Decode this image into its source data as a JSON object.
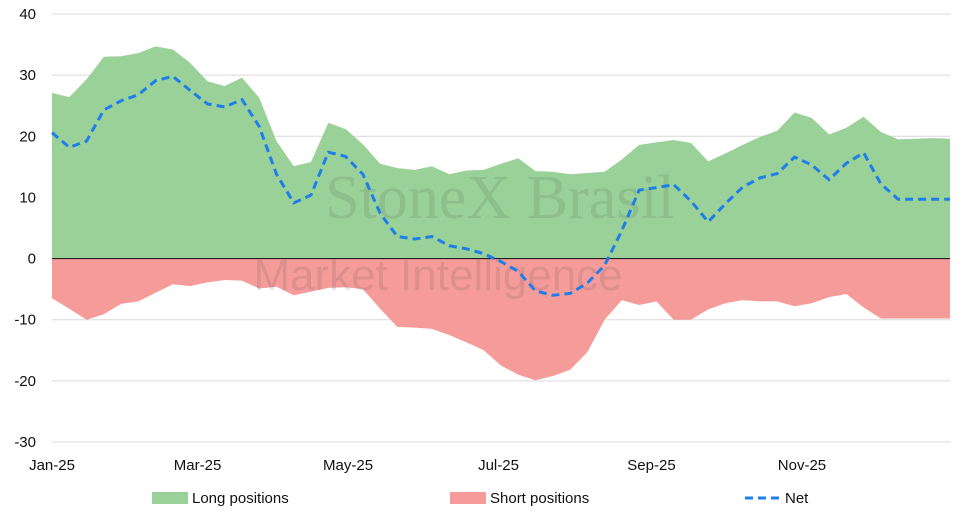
{
  "chart_data": {
    "type": "area",
    "x_start": "2025-01-01",
    "x_end": "2025-12-31",
    "xticks": [
      "Jan-25",
      "Mar-25",
      "May-25",
      "Jul-25",
      "Sep-25",
      "Nov-25"
    ],
    "ylim": [
      -30,
      40
    ],
    "yticks": [
      40,
      30,
      20,
      10,
      0,
      -10,
      -20,
      -30
    ],
    "grid": true,
    "legend_position": "bottom",
    "watermark": [
      "StoneX Brasil",
      "Market Intelligence"
    ],
    "dates": [
      "2025-01-01",
      "2025-01-08",
      "2025-01-15",
      "2025-01-22",
      "2025-01-29",
      "2025-02-05",
      "2025-02-12",
      "2025-02-19",
      "2025-02-26",
      "2025-03-05",
      "2025-03-12",
      "2025-03-19",
      "2025-03-26",
      "2025-04-02",
      "2025-04-09",
      "2025-04-16",
      "2025-04-23",
      "2025-04-30",
      "2025-05-07",
      "2025-05-14",
      "2025-05-21",
      "2025-05-28",
      "2025-06-04",
      "2025-06-11",
      "2025-06-18",
      "2025-06-25",
      "2025-07-02",
      "2025-07-09",
      "2025-07-16",
      "2025-07-23",
      "2025-07-30",
      "2025-08-06",
      "2025-08-13",
      "2025-08-20",
      "2025-08-27",
      "2025-09-03",
      "2025-09-10",
      "2025-09-17",
      "2025-09-24",
      "2025-10-01",
      "2025-10-08",
      "2025-10-15",
      "2025-10-22",
      "2025-10-29",
      "2025-11-05",
      "2025-11-12",
      "2025-11-19",
      "2025-11-26",
      "2025-12-03",
      "2025-12-10",
      "2025-12-17",
      "2025-12-24",
      "2025-12-31"
    ],
    "series": [
      {
        "name": "Long positions",
        "kind": "area",
        "color": "#99d198",
        "values": [
          27.1,
          26.4,
          29.3,
          33.0,
          33.1,
          33.6,
          34.7,
          34.2,
          32.0,
          29.0,
          28.2,
          29.6,
          26.3,
          19.2,
          15.1,
          15.8,
          22.2,
          21.2,
          18.7,
          15.5,
          14.8,
          14.5,
          15.1,
          13.8,
          14.4,
          14.5,
          15.5,
          16.4,
          14.3,
          14.2,
          13.8,
          14.0,
          14.2,
          16.2,
          18.6,
          19.0,
          19.4,
          18.9,
          15.9,
          17.2,
          18.6,
          19.9,
          20.9,
          23.9,
          23.0,
          20.3,
          21.4,
          23.2,
          20.7,
          19.5,
          19.6,
          19.7,
          19.6
        ]
      },
      {
        "name": "Short positions",
        "kind": "area",
        "color": "#f59c9b",
        "values": [
          -6.5,
          -8.2,
          -10.0,
          -9.1,
          -7.4,
          -7.0,
          -5.6,
          -4.2,
          -4.5,
          -3.9,
          -3.5,
          -3.6,
          -4.9,
          -4.6,
          -6.0,
          -5.4,
          -4.8,
          -4.7,
          -5.0,
          -8.2,
          -11.2,
          -11.3,
          -11.5,
          -12.5,
          -13.7,
          -15.0,
          -17.5,
          -19.0,
          -19.9,
          -19.2,
          -18.2,
          -15.3,
          -10.0,
          -6.8,
          -7.6,
          -7.0,
          -10.0,
          -10.0,
          -8.3,
          -7.3,
          -6.8,
          -7.0,
          -7.0,
          -7.8,
          -7.3,
          -6.3,
          -5.8,
          -8.0,
          -9.8,
          -9.8,
          -9.8,
          -9.8,
          -9.8
        ]
      },
      {
        "name": "Net",
        "kind": "line",
        "color": "#1f7fea",
        "dash": "dashed",
        "values": [
          20.6,
          18.2,
          19.2,
          24.3,
          25.8,
          26.8,
          29.1,
          29.8,
          27.5,
          25.3,
          24.8,
          26.0,
          21.6,
          13.8,
          9.1,
          10.4,
          17.4,
          16.7,
          13.8,
          7.4,
          3.6,
          3.2,
          3.6,
          2.1,
          1.6,
          0.8,
          -0.5,
          -2.1,
          -5.3,
          -6.0,
          -5.7,
          -4.0,
          -1.1,
          4.6,
          11.2,
          11.6,
          12.1,
          9.4,
          6.0,
          9.0,
          11.7,
          13.2,
          13.9,
          16.6,
          15.3,
          12.9,
          15.6,
          17.3,
          12.2,
          9.7,
          9.7,
          9.7,
          9.7
        ]
      }
    ]
  },
  "legend": {
    "items": [
      {
        "label": "Long positions",
        "color": "#99d198",
        "marker": "swatch"
      },
      {
        "label": "Short positions",
        "color": "#f59c9b",
        "marker": "swatch"
      },
      {
        "label": "Net",
        "color": "#1f7fea",
        "marker": "dashed-line"
      }
    ]
  }
}
